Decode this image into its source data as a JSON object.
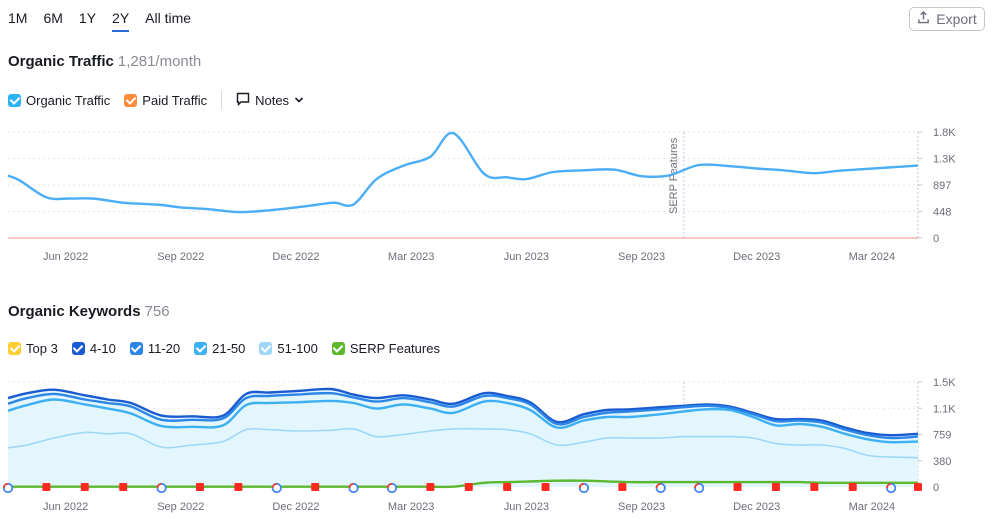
{
  "ranges": [
    "1M",
    "6M",
    "1Y",
    "2Y",
    "All time"
  ],
  "active_range": "2Y",
  "export_label": "Export",
  "traffic": {
    "title": "Organic Traffic",
    "value": "1,281/month",
    "legend": [
      {
        "label": "Organic Traffic",
        "color": "#2bb3f5"
      },
      {
        "label": "Paid Traffic",
        "color": "#ff8c3b"
      }
    ],
    "notes_label": "Notes"
  },
  "keywords": {
    "title": "Organic Keywords",
    "value": "756",
    "legend": [
      {
        "label": "Top 3",
        "color": "#ffcc33"
      },
      {
        "label": "4-10",
        "color": "#1a5bd1"
      },
      {
        "label": "11-20",
        "color": "#2c86e8"
      },
      {
        "label": "21-50",
        "color": "#3cb0f2"
      },
      {
        "label": "51-100",
        "color": "#9fd8f7"
      },
      {
        "label": "SERP Features",
        "color": "#5cb82e"
      }
    ]
  },
  "chart_data": [
    {
      "type": "line",
      "title": "Organic Traffic",
      "x_ticks": [
        "Jun 2022",
        "Sep 2022",
        "Dec 2022",
        "Mar 2023",
        "Jun 2023",
        "Sep 2023",
        "Dec 2023",
        "Mar 2024"
      ],
      "y_ticks": [
        "1.8K",
        "1.3K",
        "897",
        "448",
        "0"
      ],
      "ylim": [
        0,
        1800
      ],
      "annotation": "SERP Features",
      "series": [
        {
          "name": "Organic Traffic",
          "color": "#4badf5",
          "x": [
            0,
            0.3,
            1.0,
            1.6,
            2.2,
            3.0,
            3.5,
            4.0,
            4.5,
            5.2,
            6.0,
            6.8,
            7.5,
            8.0,
            8.5,
            9.0,
            9.6,
            10.3,
            11.0,
            11.6,
            12.4,
            13.0,
            13.5,
            14.2,
            15.0,
            15.8,
            16.5,
            17.2,
            18.0,
            18.8,
            19.5,
            20.2,
            21.0,
            21.6,
            22.3,
            23.0,
            23.7
          ],
          "y": [
            1060,
            980,
            690,
            670,
            670,
            600,
            580,
            560,
            520,
            490,
            440,
            470,
            520,
            560,
            600,
            570,
            1000,
            1230,
            1380,
            1780,
            1090,
            1030,
            1000,
            1120,
            1150,
            1160,
            1050,
            1060,
            1240,
            1220,
            1180,
            1150,
            1100,
            1140,
            1170,
            1200,
            1230
          ]
        },
        {
          "name": "Paid Traffic",
          "color": "#ff8c3b",
          "x": [
            0,
            23.7
          ],
          "y": [
            0,
            0
          ]
        }
      ]
    },
    {
      "type": "area",
      "title": "Organic Keywords",
      "x_ticks": [
        "Jun 2022",
        "Sep 2022",
        "Dec 2022",
        "Mar 2023",
        "Jun 2023",
        "Sep 2023",
        "Dec 2023",
        "Mar 2024"
      ],
      "y_ticks": [
        "1.5K",
        "1.1K",
        "759",
        "380",
        "0"
      ],
      "ylim": [
        0,
        1500
      ],
      "x": [
        0,
        0.5,
        1.2,
        2.0,
        2.6,
        3.2,
        4.0,
        4.8,
        5.6,
        6.2,
        6.8,
        7.5,
        8.4,
        9.0,
        9.6,
        10.3,
        11.0,
        11.6,
        12.4,
        13.0,
        13.6,
        14.3,
        15.0,
        15.6,
        16.2,
        17.0,
        17.6,
        18.2,
        18.8,
        19.4,
        20.0,
        20.6,
        21.2,
        21.8,
        22.4,
        23.0,
        23.7
      ],
      "series": [
        {
          "name": "51-100",
          "color": "#9fd8f7",
          "values": [
            560,
            600,
            700,
            780,
            760,
            760,
            570,
            600,
            650,
            820,
            820,
            800,
            810,
            830,
            720,
            750,
            800,
            830,
            830,
            820,
            760,
            600,
            640,
            700,
            700,
            700,
            720,
            720,
            720,
            700,
            620,
            600,
            600,
            550,
            450,
            430,
            420
          ]
        },
        {
          "name": "21-50",
          "color": "#3cb0f2",
          "values": [
            1090,
            1170,
            1250,
            1180,
            1120,
            1050,
            870,
            860,
            880,
            1170,
            1200,
            1210,
            1230,
            1200,
            1120,
            1180,
            1120,
            1060,
            1220,
            1200,
            1100,
            850,
            950,
            1000,
            1000,
            1040,
            1080,
            1110,
            1100,
            1000,
            880,
            900,
            860,
            760,
            680,
            640,
            650
          ]
        },
        {
          "name": "11-20",
          "color": "#2c86e8",
          "values": [
            1190,
            1270,
            1330,
            1250,
            1200,
            1150,
            960,
            960,
            980,
            1270,
            1300,
            1320,
            1340,
            1280,
            1220,
            1270,
            1210,
            1150,
            1300,
            1270,
            1180,
            900,
            1000,
            1060,
            1080,
            1110,
            1140,
            1160,
            1130,
            1040,
            940,
            950,
            920,
            820,
            740,
            700,
            720
          ]
        },
        {
          "name": "4-10",
          "color": "#1a5bd1",
          "values": [
            1270,
            1340,
            1390,
            1310,
            1250,
            1200,
            1020,
            1010,
            1020,
            1330,
            1350,
            1370,
            1400,
            1320,
            1270,
            1310,
            1250,
            1190,
            1340,
            1300,
            1210,
            930,
            1040,
            1100,
            1110,
            1140,
            1160,
            1180,
            1150,
            1060,
            970,
            970,
            950,
            850,
            770,
            740,
            760
          ]
        },
        {
          "name": "SERP Features",
          "color": "#5cb82e",
          "values": [
            5,
            5,
            5,
            5,
            5,
            5,
            5,
            5,
            5,
            5,
            5,
            5,
            5,
            5,
            5,
            5,
            5,
            5,
            60,
            70,
            80,
            90,
            90,
            80,
            70,
            70,
            70,
            70,
            70,
            70,
            70,
            70,
            60,
            60,
            60,
            60,
            60
          ]
        }
      ],
      "annotations": [
        {
          "x": 0,
          "icon": "google-icon"
        },
        {
          "x": 1.0,
          "icon": "flag-icon"
        },
        {
          "x": 2.0,
          "icon": "flag-icon"
        },
        {
          "x": 3.0,
          "icon": "flag-icon"
        },
        {
          "x": 4.0,
          "icon": "google-icon"
        },
        {
          "x": 5.0,
          "icon": "flag-icon"
        },
        {
          "x": 6.0,
          "icon": "flag-icon"
        },
        {
          "x": 7.0,
          "icon": "google-icon"
        },
        {
          "x": 8.0,
          "icon": "flag-icon"
        },
        {
          "x": 9.0,
          "icon": "google-icon"
        },
        {
          "x": 10.0,
          "icon": "google-icon"
        },
        {
          "x": 11.0,
          "icon": "flag-icon"
        },
        {
          "x": 12.0,
          "icon": "flag-icon"
        },
        {
          "x": 13.0,
          "icon": "flag-icon"
        },
        {
          "x": 14.0,
          "icon": "flag-icon"
        },
        {
          "x": 15.0,
          "icon": "google-icon"
        },
        {
          "x": 16.0,
          "icon": "flag-icon"
        },
        {
          "x": 17.0,
          "icon": "google-icon"
        },
        {
          "x": 18.0,
          "icon": "google-icon"
        },
        {
          "x": 19.0,
          "icon": "flag-icon"
        },
        {
          "x": 20.0,
          "icon": "flag-icon"
        },
        {
          "x": 21.0,
          "icon": "flag-icon"
        },
        {
          "x": 22.0,
          "icon": "flag-icon"
        },
        {
          "x": 23.0,
          "icon": "google-icon"
        },
        {
          "x": 23.7,
          "icon": "flag-icon"
        }
      ]
    }
  ]
}
